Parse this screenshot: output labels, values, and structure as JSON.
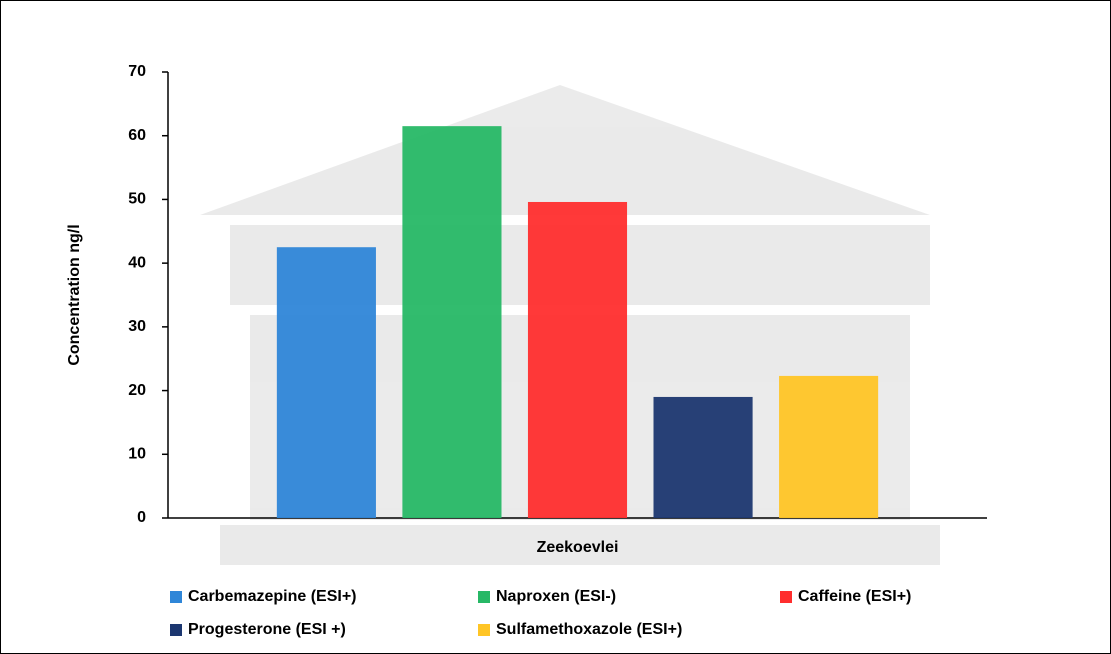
{
  "chart_data": {
    "type": "bar",
    "y_label": "Concentration ng/l",
    "categories": [
      "Zeekoevlei"
    ],
    "series": [
      {
        "name": "Carbemazepine (ESI+)",
        "color": "#2f86d8",
        "values": [
          42.5
        ]
      },
      {
        "name": "Naproxen (ESI-)",
        "color": "#27b866",
        "values": [
          61.5
        ]
      },
      {
        "name": "Caffeine (ESI+)",
        "color": "#ff2e2e",
        "values": [
          49.6
        ]
      },
      {
        "name": "Progesterone (ESI +)",
        "color": "#1c3770",
        "values": [
          19
        ]
      },
      {
        "name": "Sulfamethoxazole (ESI+)",
        "color": "#ffc526",
        "values": [
          22.3
        ]
      }
    ],
    "ylim": [
      0,
      70
    ],
    "yticks": [
      0,
      10,
      20,
      30,
      40,
      50,
      60,
      70
    ],
    "grid": false
  }
}
